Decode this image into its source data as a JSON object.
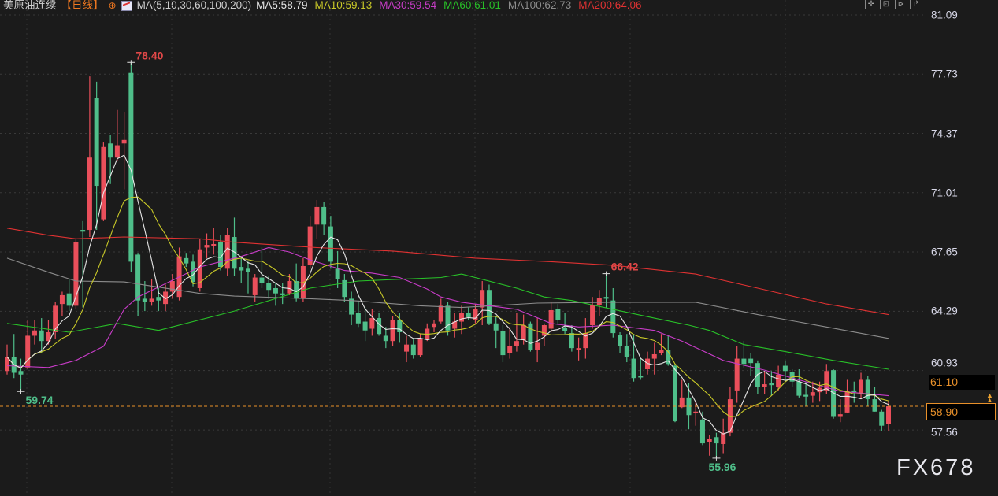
{
  "header": {
    "symbol": "美原油连续",
    "period": "【日线】",
    "period_icon": "crosshair-circle-icon",
    "indicator_icon": "chart-icon",
    "indicator": "MA(5,10,30,60,100,200)",
    "ma": [
      {
        "label": "MA5:58.79",
        "color": "#e6e6e6"
      },
      {
        "label": "MA10:59.13",
        "color": "#c8c828"
      },
      {
        "label": "MA30:59.54",
        "color": "#c83cc8"
      },
      {
        "label": "MA60:61.01",
        "color": "#28c028"
      },
      {
        "label": "MA100:62.73",
        "color": "#8c8c8c"
      },
      {
        "label": "MA200:64.06",
        "color": "#e03232"
      }
    ],
    "tools": [
      "crosshair-icon",
      "zoom-in-icon",
      "zoom-out-icon",
      "back-icon"
    ]
  },
  "axis": {
    "ticks": [
      "81.09",
      "77.73",
      "74.37",
      "71.01",
      "67.65",
      "64.29",
      "60.93",
      "57.56"
    ]
  },
  "price_tags": {
    "marker": "61.10",
    "last": "58.90"
  },
  "watermark": "FX678",
  "chart_data": {
    "type": "candlestick",
    "title": "",
    "ylim": [
      55.5,
      81.09
    ],
    "grid": true,
    "up_color": "#ea4f5b",
    "down_color": "#4fbf8a",
    "ohlc": [
      [
        60.9,
        62.4,
        60.7,
        61.7
      ],
      [
        61.7,
        63.0,
        60.5,
        60.8
      ],
      [
        60.9,
        61.6,
        59.74,
        60.7
      ],
      [
        61.1,
        63.8,
        61.0,
        62.9
      ],
      [
        62.9,
        63.8,
        62.4,
        63.2
      ],
      [
        63.2,
        63.9,
        61.9,
        62.6
      ],
      [
        62.6,
        63.8,
        62.4,
        63.1
      ],
      [
        63.1,
        64.8,
        62.7,
        64.6
      ],
      [
        64.7,
        65.4,
        64.0,
        65.2
      ],
      [
        65.3,
        66.1,
        64.3,
        64.6
      ],
      [
        64.6,
        68.4,
        64.4,
        68.2
      ],
      [
        68.9,
        69.4,
        64.5,
        68.8
      ],
      [
        68.9,
        77.6,
        68.5,
        73.0
      ],
      [
        76.4,
        77.3,
        68.9,
        71.4
      ],
      [
        69.5,
        73.9,
        69.4,
        73.6
      ],
      [
        73.8,
        74.3,
        71.5,
        73.0
      ],
      [
        73.0,
        75.7,
        72.8,
        73.7
      ],
      [
        73.8,
        75.6,
        71.2,
        74.0
      ],
      [
        77.8,
        78.4,
        66.5,
        67.1
      ],
      [
        67.5,
        67.6,
        64.0,
        64.9
      ],
      [
        65.0,
        66.0,
        64.3,
        64.8
      ],
      [
        64.8,
        66.1,
        64.6,
        65.0
      ],
      [
        65.1,
        65.6,
        64.3,
        64.9
      ],
      [
        64.7,
        65.8,
        64.3,
        65.4
      ],
      [
        65.4,
        66.4,
        65.0,
        66.0
      ],
      [
        65.1,
        67.9,
        64.9,
        67.4
      ],
      [
        67.3,
        67.6,
        66.8,
        67.0
      ],
      [
        67.1,
        67.5,
        65.7,
        65.95
      ],
      [
        65.6,
        68.4,
        65.4,
        67.8
      ],
      [
        67.9,
        68.7,
        67.3,
        68.05
      ],
      [
        68.0,
        69.0,
        67.5,
        68.1
      ],
      [
        68.2,
        68.6,
        66.6,
        66.8
      ],
      [
        66.7,
        69.0,
        66.3,
        68.6
      ],
      [
        68.5,
        69.6,
        66.3,
        66.7
      ],
      [
        66.8,
        67.4,
        65.9,
        66.6
      ],
      [
        66.7,
        67.1,
        65.3,
        66.5
      ],
      [
        65.2,
        66.4,
        64.8,
        66.2
      ],
      [
        66.2,
        67.9,
        65.6,
        65.9
      ],
      [
        65.9,
        66.3,
        65.0,
        65.5
      ],
      [
        65.6,
        65.9,
        64.6,
        65.3
      ],
      [
        65.3,
        65.9,
        64.7,
        65.2
      ],
      [
        65.3,
        66.4,
        65.2,
        66.0
      ],
      [
        66.0,
        67.0,
        64.85,
        65.0
      ],
      [
        65.0,
        67.3,
        64.8,
        66.85
      ],
      [
        66.9,
        69.7,
        66.7,
        69.1
      ],
      [
        69.2,
        70.6,
        68.4,
        70.2
      ],
      [
        70.2,
        70.5,
        68.6,
        69.2
      ],
      [
        69.1,
        69.7,
        66.7,
        67.1
      ],
      [
        66.7,
        67.7,
        65.6,
        66.1
      ],
      [
        66.05,
        66.4,
        64.8,
        65.1
      ],
      [
        65.0,
        65.4,
        63.5,
        64.1
      ],
      [
        64.2,
        64.9,
        63.4,
        63.6
      ],
      [
        63.7,
        64.5,
        62.6,
        63.2
      ],
      [
        63.3,
        64.4,
        62.9,
        63.9
      ],
      [
        63.9,
        64.2,
        62.9,
        63.0
      ],
      [
        62.9,
        63.4,
        62.2,
        62.6
      ],
      [
        62.6,
        64.0,
        62.3,
        63.8
      ],
      [
        63.8,
        64.2,
        62.5,
        63.1
      ],
      [
        62.0,
        62.9,
        61.4,
        62.4
      ],
      [
        62.4,
        62.7,
        61.6,
        61.8
      ],
      [
        61.8,
        63.0,
        61.7,
        62.75
      ],
      [
        62.7,
        63.6,
        62.6,
        63.3
      ],
      [
        63.4,
        63.8,
        63.1,
        63.6
      ],
      [
        63.7,
        65.0,
        63.6,
        64.6
      ],
      [
        64.6,
        64.8,
        62.9,
        63.2
      ],
      [
        63.3,
        64.2,
        62.8,
        63.7
      ],
      [
        63.7,
        64.6,
        63.0,
        64.2
      ],
      [
        64.2,
        64.5,
        63.8,
        63.95
      ],
      [
        63.8,
        64.7,
        63.6,
        64.4
      ],
      [
        64.5,
        66.0,
        63.5,
        65.5
      ],
      [
        65.5,
        65.8,
        63.5,
        63.6
      ],
      [
        63.6,
        64.0,
        62.2,
        63.2
      ],
      [
        63.15,
        63.5,
        61.4,
        61.8
      ],
      [
        61.9,
        63.4,
        61.6,
        62.3
      ],
      [
        62.3,
        64.2,
        62.0,
        62.6
      ],
      [
        62.65,
        64.1,
        62.4,
        63.5
      ],
      [
        63.6,
        63.7,
        62.0,
        62.1
      ],
      [
        62.1,
        63.9,
        61.4,
        62.5
      ],
      [
        62.9,
        63.6,
        62.3,
        63.5
      ],
      [
        63.3,
        64.8,
        63.1,
        64.35
      ],
      [
        64.4,
        64.7,
        63.5,
        63.8
      ],
      [
        63.35,
        64.2,
        63.0,
        63.15
      ],
      [
        63.05,
        63.5,
        62.0,
        62.2
      ],
      [
        62.1,
        62.8,
        61.5,
        62.2
      ],
      [
        62.2,
        63.9,
        61.6,
        63.05
      ],
      [
        63.5,
        65.1,
        63.3,
        64.65
      ],
      [
        64.65,
        65.5,
        64.0,
        65.06
      ],
      [
        65.1,
        66.42,
        64.5,
        65.0
      ],
      [
        64.9,
        65.6,
        62.8,
        63.05
      ],
      [
        62.95,
        63.1,
        61.9,
        62.3
      ],
      [
        62.3,
        63.0,
        61.4,
        61.7
      ],
      [
        61.6,
        63.0,
        60.3,
        60.5
      ],
      [
        60.6,
        61.6,
        60.4,
        60.55
      ],
      [
        61.0,
        62.0,
        60.7,
        61.6
      ],
      [
        61.6,
        62.5,
        60.7,
        61.85
      ],
      [
        61.9,
        63.0,
        61.8,
        62.1
      ],
      [
        62.1,
        62.9,
        61.2,
        61.3
      ],
      [
        61.2,
        61.3,
        58.0,
        58.05
      ],
      [
        58.85,
        60.4,
        58.8,
        59.4
      ],
      [
        59.4,
        60.2,
        57.6,
        58.4
      ],
      [
        58.5,
        59.2,
        57.8,
        58.6
      ],
      [
        58.15,
        58.6,
        56.7,
        56.8
      ],
      [
        56.85,
        57.25,
        56.1,
        57.05
      ],
      [
        57.15,
        57.4,
        55.96,
        56.8
      ],
      [
        56.76,
        58.2,
        56.2,
        57.4
      ],
      [
        57.4,
        60.0,
        57.2,
        59.3
      ],
      [
        59.8,
        62.3,
        59.1,
        61.6
      ],
      [
        61.6,
        62.6,
        61.1,
        61.3
      ],
      [
        61.6,
        61.9,
        60.6,
        61.35
      ],
      [
        61.35,
        61.5,
        59.6,
        60.0
      ],
      [
        60.0,
        60.9,
        59.6,
        60.15
      ],
      [
        60.2,
        60.9,
        59.5,
        60.1
      ],
      [
        60.0,
        61.2,
        59.8,
        60.7
      ],
      [
        61.2,
        61.5,
        60.3,
        60.9
      ],
      [
        60.85,
        61.0,
        60.0,
        60.3
      ],
      [
        60.3,
        61.0,
        59.4,
        59.5
      ],
      [
        59.55,
        60.3,
        58.9,
        59.45
      ],
      [
        59.5,
        60.3,
        59.1,
        59.7
      ],
      [
        59.7,
        60.3,
        59.2,
        59.95
      ],
      [
        59.8,
        61.3,
        59.6,
        60.9
      ],
      [
        60.95,
        61.0,
        58.2,
        58.3
      ],
      [
        58.3,
        59.3,
        58.0,
        58.45
      ],
      [
        58.55,
        60.4,
        58.5,
        59.75
      ],
      [
        59.8,
        60.3,
        59.1,
        59.7
      ],
      [
        59.6,
        60.8,
        59.3,
        60.4
      ],
      [
        60.4,
        60.6,
        58.9,
        59.3
      ],
      [
        59.3,
        60.0,
        58.6,
        58.6
      ],
      [
        58.6,
        58.7,
        57.5,
        57.8
      ],
      [
        57.9,
        59.2,
        57.5,
        58.9
      ]
    ],
    "ma_sampled": {
      "MA30": [
        [
          0,
          61.2
        ],
        [
          6,
          61.1
        ],
        [
          10,
          61.5
        ],
        [
          14,
          62.3
        ],
        [
          17,
          64.4
        ],
        [
          19,
          65.1
        ],
        [
          28,
          66.8
        ],
        [
          34,
          67.4
        ],
        [
          38,
          67.9
        ],
        [
          41,
          67.65
        ],
        [
          44,
          67.2
        ],
        [
          49,
          66.6
        ],
        [
          53,
          66.45
        ],
        [
          57,
          66.2
        ],
        [
          61,
          65.55
        ],
        [
          63,
          65.1
        ],
        [
          66,
          64.8
        ],
        [
          74,
          64.4
        ],
        [
          79,
          63.6
        ],
        [
          83,
          63.4
        ],
        [
          88,
          63.5
        ],
        [
          94,
          63.2
        ],
        [
          98,
          62.6
        ],
        [
          104,
          61.5
        ],
        [
          110,
          60.95
        ],
        [
          115,
          60.4
        ],
        [
          121,
          59.75
        ],
        [
          128,
          59.5
        ]
      ],
      "MA60": [
        [
          0,
          63.6
        ],
        [
          9,
          63.1
        ],
        [
          16,
          63.6
        ],
        [
          22,
          63.2
        ],
        [
          33,
          64.3
        ],
        [
          44,
          65.6
        ],
        [
          51,
          66.0
        ],
        [
          63,
          66.2
        ],
        [
          66,
          66.4
        ],
        [
          74,
          65.6
        ],
        [
          78,
          65.1
        ],
        [
          82,
          64.9
        ],
        [
          88,
          64.4
        ],
        [
          94,
          63.9
        ],
        [
          99,
          63.5
        ],
        [
          102,
          63.2
        ],
        [
          107,
          62.4
        ],
        [
          113,
          62.0
        ],
        [
          120,
          61.5
        ],
        [
          128,
          61.0
        ]
      ],
      "MA100": [
        [
          0,
          67.3
        ],
        [
          6,
          66.5
        ],
        [
          10,
          66.0
        ],
        [
          17,
          65.95
        ],
        [
          28,
          65.3
        ],
        [
          33,
          65.15
        ],
        [
          44,
          65.0
        ],
        [
          50,
          64.9
        ],
        [
          60,
          64.6
        ],
        [
          66,
          64.5
        ],
        [
          77,
          64.75
        ],
        [
          88,
          64.8
        ],
        [
          100,
          64.8
        ],
        [
          109,
          64.1
        ],
        [
          119,
          63.4
        ],
        [
          128,
          62.75
        ]
      ],
      "MA200": [
        [
          0,
          69.0
        ],
        [
          6,
          68.6
        ],
        [
          10,
          68.4
        ],
        [
          17,
          68.5
        ],
        [
          28,
          68.4
        ],
        [
          33,
          68.2
        ],
        [
          45,
          67.9
        ],
        [
          56,
          67.7
        ],
        [
          68,
          67.3
        ],
        [
          79,
          67.1
        ],
        [
          88,
          66.9
        ],
        [
          100,
          66.4
        ],
        [
          109,
          65.6
        ],
        [
          119,
          64.7
        ],
        [
          128,
          64.1
        ]
      ]
    },
    "ma_colors": {
      "MA5": "#e6e6e6",
      "MA10": "#c8c828",
      "MA30": "#c83cc8",
      "MA60": "#28c028",
      "MA100": "#8c8c8c",
      "MA200": "#e03232"
    },
    "annotations": [
      {
        "bar": 18,
        "value": "78.40",
        "kind": "high",
        "color": "#e04848"
      },
      {
        "bar": 2,
        "value": "59.74",
        "kind": "low",
        "color": "#4fbf8a"
      },
      {
        "bar": 87,
        "value": "66.42",
        "kind": "high",
        "color": "#e04848"
      },
      {
        "bar": 103,
        "value": "55.96",
        "kind": "low",
        "color": "#4fbf8a"
      }
    ],
    "last_price": 58.9
  }
}
